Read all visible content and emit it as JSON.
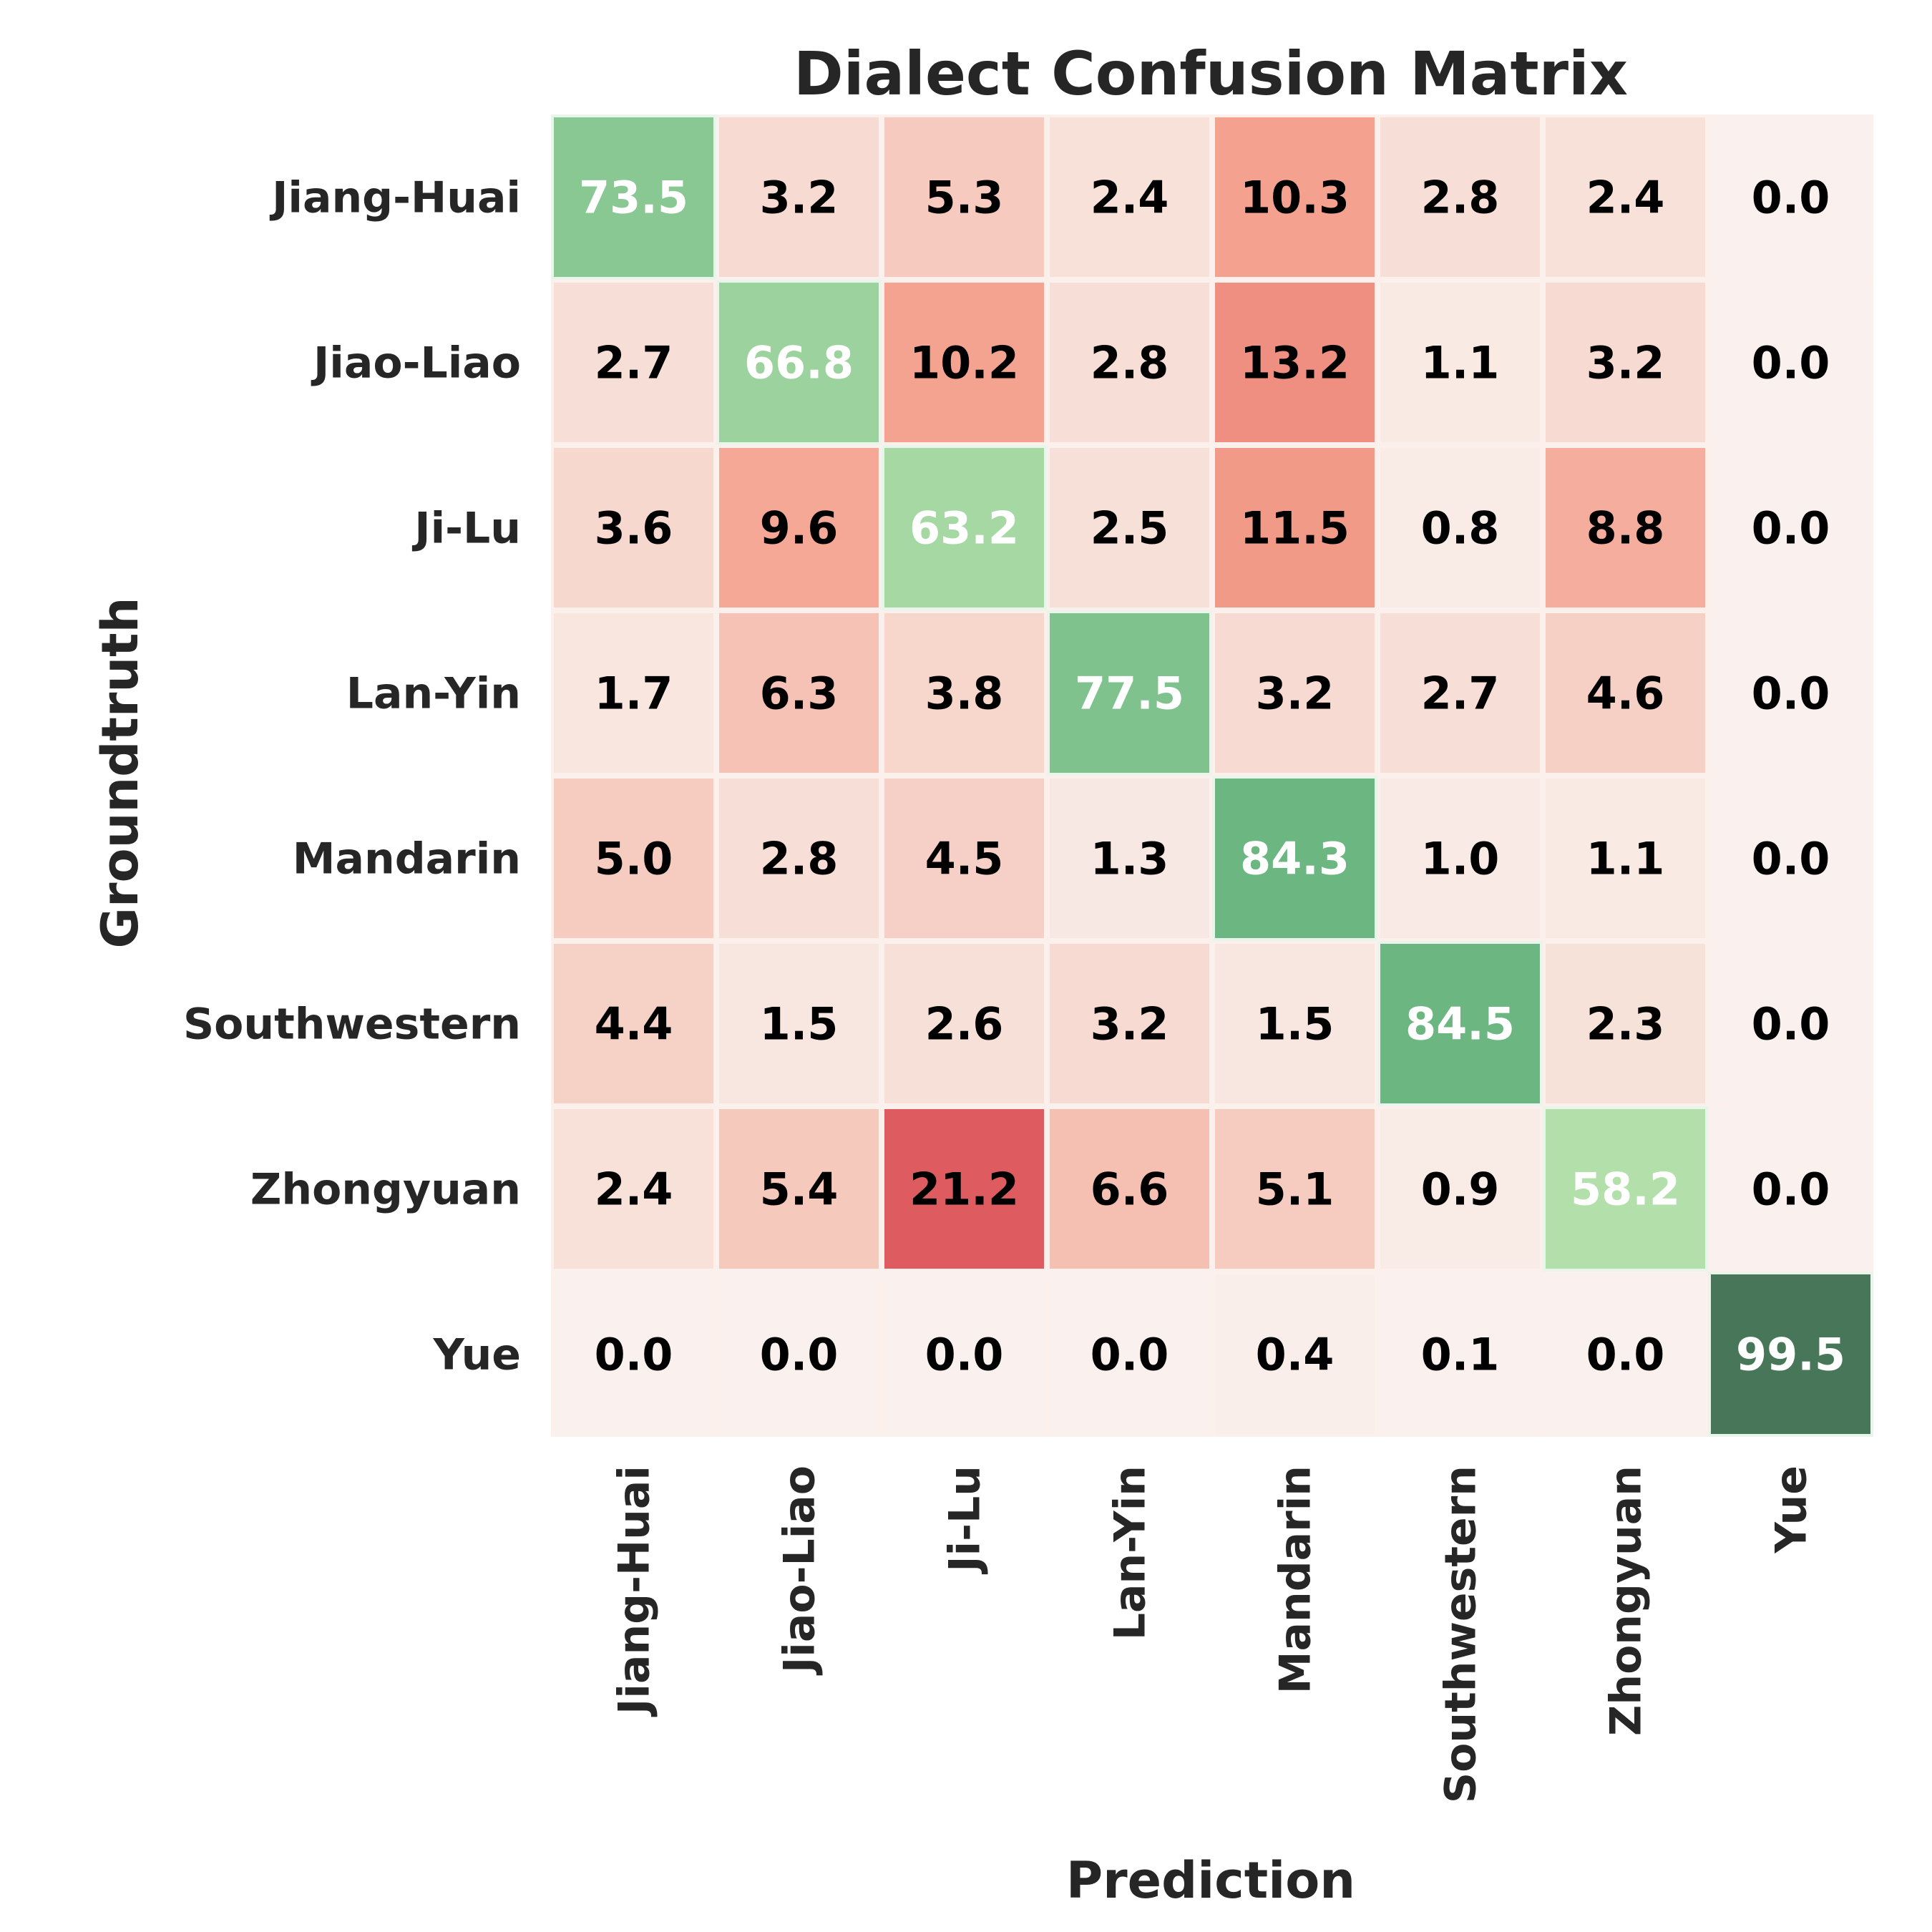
{
  "chart_data": {
    "type": "heatmap",
    "title": "Dialect Confusion Matrix",
    "xlabel": "Prediction",
    "ylabel": "Groundtruth",
    "x_categories": [
      "Jiang-Huai",
      "Jiao-Liao",
      "Ji-Lu",
      "Lan-Yin",
      "Mandarin",
      "Southwestern",
      "Zhongyuan",
      "Yue"
    ],
    "y_categories": [
      "Jiang-Huai",
      "Jiao-Liao",
      "Ji-Lu",
      "Lan-Yin",
      "Mandarin",
      "Southwestern",
      "Zhongyuan",
      "Yue"
    ],
    "values": [
      [
        73.5,
        3.2,
        5.3,
        2.4,
        10.3,
        2.8,
        2.4,
        0.0
      ],
      [
        2.7,
        66.8,
        10.2,
        2.8,
        13.2,
        1.1,
        3.2,
        0.0
      ],
      [
        3.6,
        9.6,
        63.2,
        2.5,
        11.5,
        0.8,
        8.8,
        0.0
      ],
      [
        1.7,
        6.3,
        3.8,
        77.5,
        3.2,
        2.7,
        4.6,
        0.0
      ],
      [
        5.0,
        2.8,
        4.5,
        1.3,
        84.3,
        1.0,
        1.1,
        0.0
      ],
      [
        4.4,
        1.5,
        2.6,
        3.2,
        1.5,
        84.5,
        2.3,
        0.0
      ],
      [
        2.4,
        5.4,
        21.2,
        6.6,
        5.1,
        0.9,
        58.2,
        0.0
      ],
      [
        0.0,
        0.0,
        0.0,
        0.0,
        0.4,
        0.1,
        0.0,
        99.5
      ]
    ],
    "diagonal_colormap": "greens",
    "off_diagonal_colormap": "reds",
    "diagonal_text_color": "#ffffff",
    "off_diagonal_text_color": "#000000",
    "grid": false,
    "colorbar": false
  }
}
